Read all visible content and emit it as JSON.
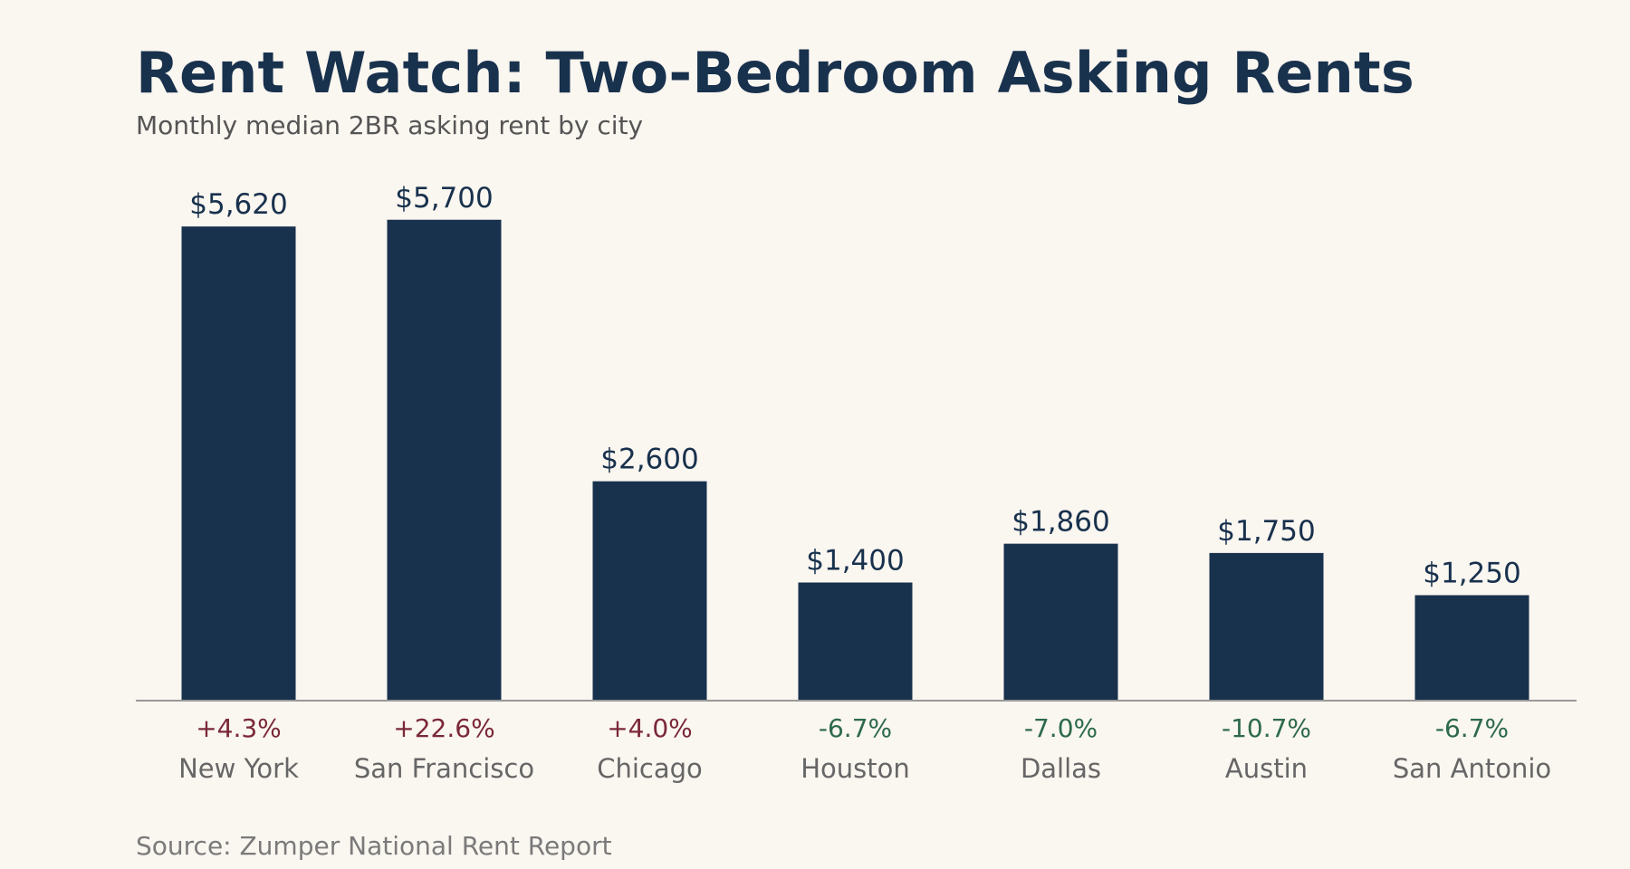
{
  "chart_data": {
    "type": "bar",
    "title": "Rent Watch: Two-Bedroom Asking Rents",
    "subtitle": "Monthly median 2BR asking rent by city",
    "source": "Source: Zumper National Rent Report",
    "categories": [
      "New York",
      "San Francisco",
      "Chicago",
      "Houston",
      "Dallas",
      "Austin",
      "San Antonio"
    ],
    "values": [
      5620,
      5700,
      2600,
      1400,
      1860,
      1750,
      1250
    ],
    "value_labels": [
      "$5,620",
      "$5,700",
      "$2,600",
      "$1,400",
      "$1,860",
      "$1,750",
      "$1,250"
    ],
    "change_labels": [
      "+4.3%",
      "+22.6%",
      "+4.0%",
      "-6.7%",
      "-7.0%",
      "-10.7%",
      "-6.7%"
    ],
    "ylim": [
      0,
      6500
    ],
    "grid": false,
    "legend": "none",
    "colors": {
      "bar": "#18314d",
      "value_label": "#18314d",
      "increase": "#7a2838",
      "decrease": "#2d6a4a",
      "category_label": "#666666",
      "baseline": "#999999"
    }
  }
}
